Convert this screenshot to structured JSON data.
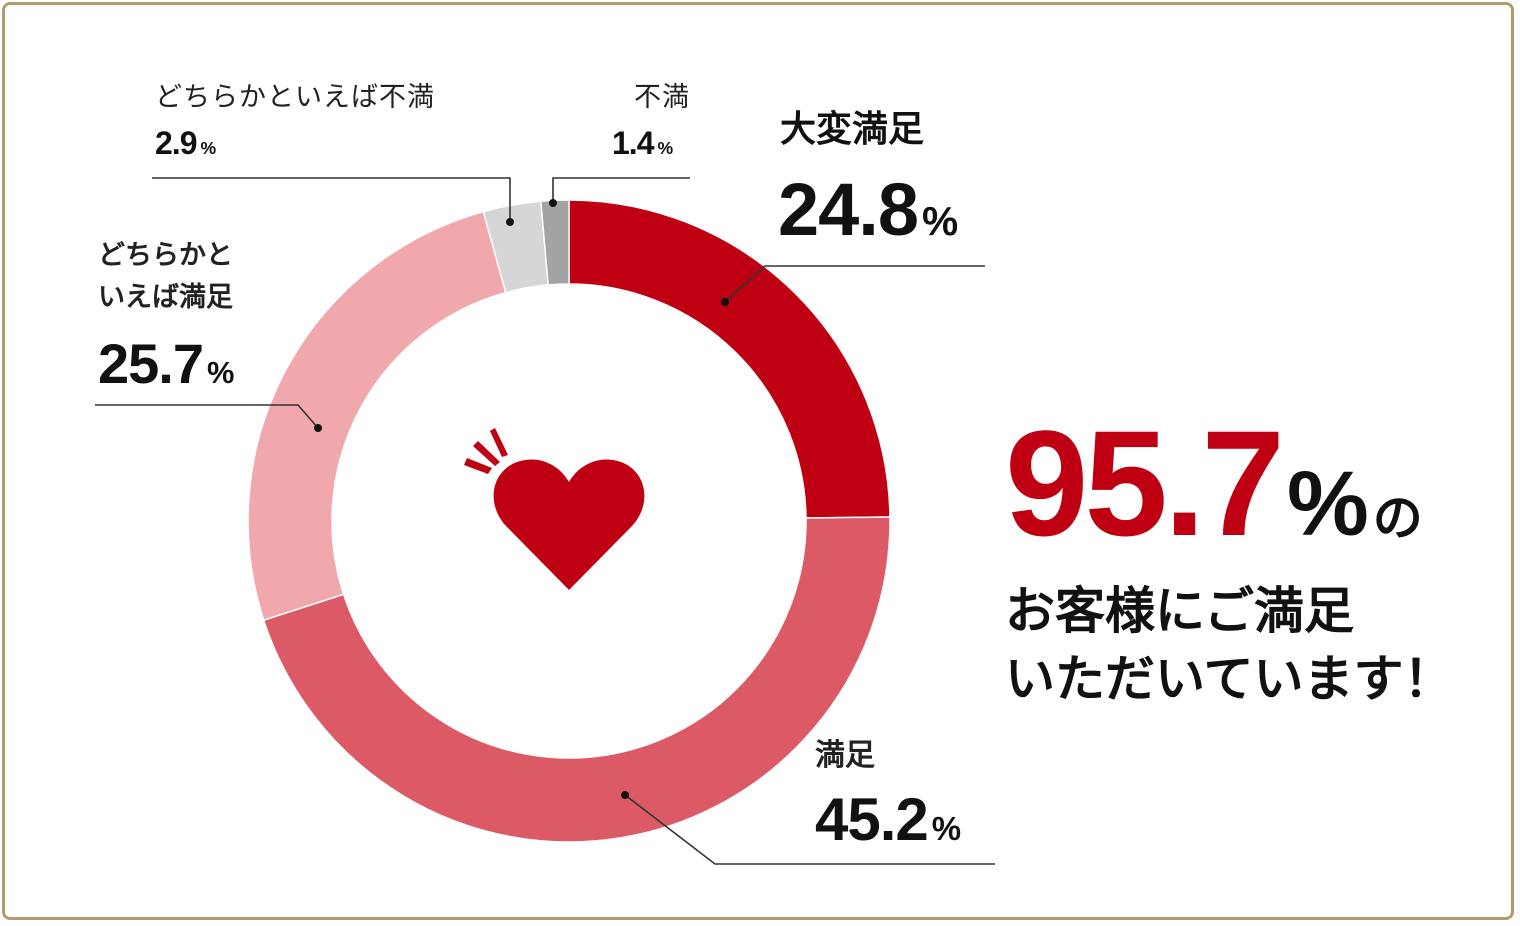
{
  "chart_data": {
    "type": "pie",
    "style": "donut",
    "slices": [
      {
        "label": "大変満足",
        "value": 24.8,
        "color": "#bf0013"
      },
      {
        "label": "満足",
        "value": 45.2,
        "color": "#dc5a66"
      },
      {
        "label": "どちらかといえば満足",
        "value": 25.7,
        "color": "#f0a8ad"
      },
      {
        "label": "どちらかといえば不満",
        "value": 2.9,
        "color": "#d6d6d6"
      },
      {
        "label": "不満",
        "value": 1.4,
        "color": "#a3a3a3"
      }
    ],
    "unit": "%"
  },
  "labels": {
    "very_satisfied": {
      "name": "大変満足",
      "value": "24.8"
    },
    "satisfied": {
      "name": "満足",
      "value": "45.2"
    },
    "somewhat_satisfied": {
      "name1": "どちらかと",
      "name2": "いえば満足",
      "value": "25.7"
    },
    "somewhat_dissatisfied": {
      "name": "どちらかといえば不満",
      "value": "2.9"
    },
    "dissatisfied": {
      "name": "不満",
      "value": "1.4"
    },
    "unit": "%"
  },
  "summary": {
    "value": "95.7",
    "unit": "%",
    "particle": "の",
    "line1": "お客様にご満足",
    "line2": "いただいています！"
  },
  "center_icon": "heart-icon",
  "colors": {
    "accent": "#bf0013",
    "frame": "#b39c6b"
  }
}
